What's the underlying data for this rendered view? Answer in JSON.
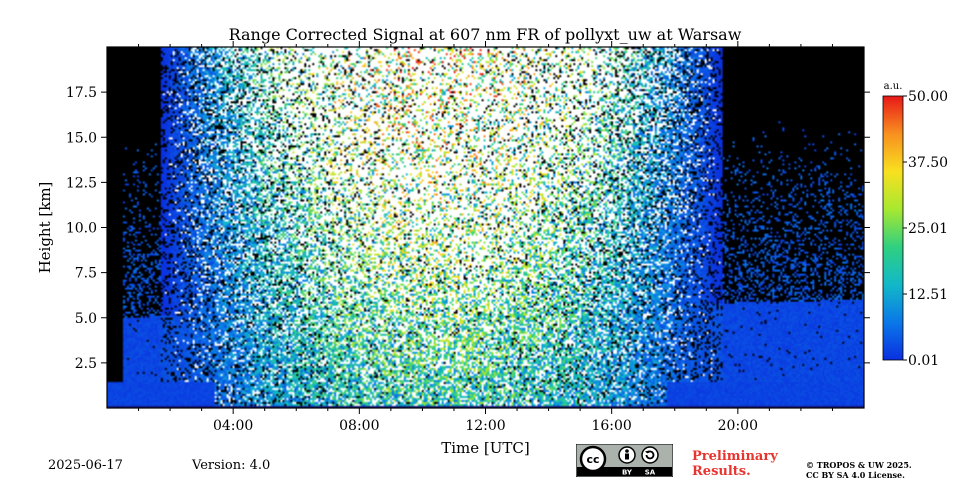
{
  "chart_data": {
    "type": "heatmap",
    "title": "Range Corrected Signal at 607 nm FR of pollyxt_uw at Warsaw",
    "xlabel": "Time [UTC]",
    "ylabel": "Height [km]",
    "xlim_hours": [
      0,
      24
    ],
    "ylim_km": [
      0,
      20
    ],
    "x_ticks": [
      {
        "value": 4,
        "label": "04:00"
      },
      {
        "value": 8,
        "label": "08:00"
      },
      {
        "value": 12,
        "label": "12:00"
      },
      {
        "value": 16,
        "label": "16:00"
      },
      {
        "value": 20,
        "label": "20:00"
      }
    ],
    "y_ticks": [
      {
        "value": 2.5,
        "label": "2.5"
      },
      {
        "value": 5.0,
        "label": "5.0"
      },
      {
        "value": 7.5,
        "label": "7.5"
      },
      {
        "value": 10.0,
        "label": "10.0"
      },
      {
        "value": 12.5,
        "label": "12.5"
      },
      {
        "value": 15.0,
        "label": "15.0"
      },
      {
        "value": 17.5,
        "label": "17.5"
      }
    ],
    "colorbar": {
      "unit_label": "a.u.",
      "range": [
        0.01,
        50.0
      ],
      "ticks": [
        {
          "value": 0.01,
          "label": "0.01"
        },
        {
          "value": 12.51,
          "label": "12.51"
        },
        {
          "value": 25.01,
          "label": "25.01"
        },
        {
          "value": 37.5,
          "label": "37.50"
        },
        {
          "value": 50.0,
          "label": "50.00"
        }
      ],
      "colors": [
        "#0a2fe0",
        "#0a78e8",
        "#12b8c8",
        "#30d080",
        "#a8e830",
        "#f8e020",
        "#f89020",
        "#e81818"
      ]
    },
    "features": {
      "night_no_data_end_hour": 0.5,
      "daylight_start_hour": 1.7,
      "daylight_end_hour": 19.5,
      "blue_layer_top_km": 1.4,
      "aerosol_top_km_night_start": 5.0,
      "aerosol_top_km_night_end": 6.0,
      "noise_saturation_color": "#ffffff"
    }
  },
  "footer": {
    "date": "2025-06-17",
    "version": "Version: 4.0",
    "preliminary": "Preliminary Results.",
    "copyright_line1": "© TROPOS & UW 2025.",
    "copyright_line2": "CC BY SA 4.0 License.",
    "license_badge": {
      "cc": "cc",
      "by": "BY",
      "sa": "SA"
    }
  }
}
